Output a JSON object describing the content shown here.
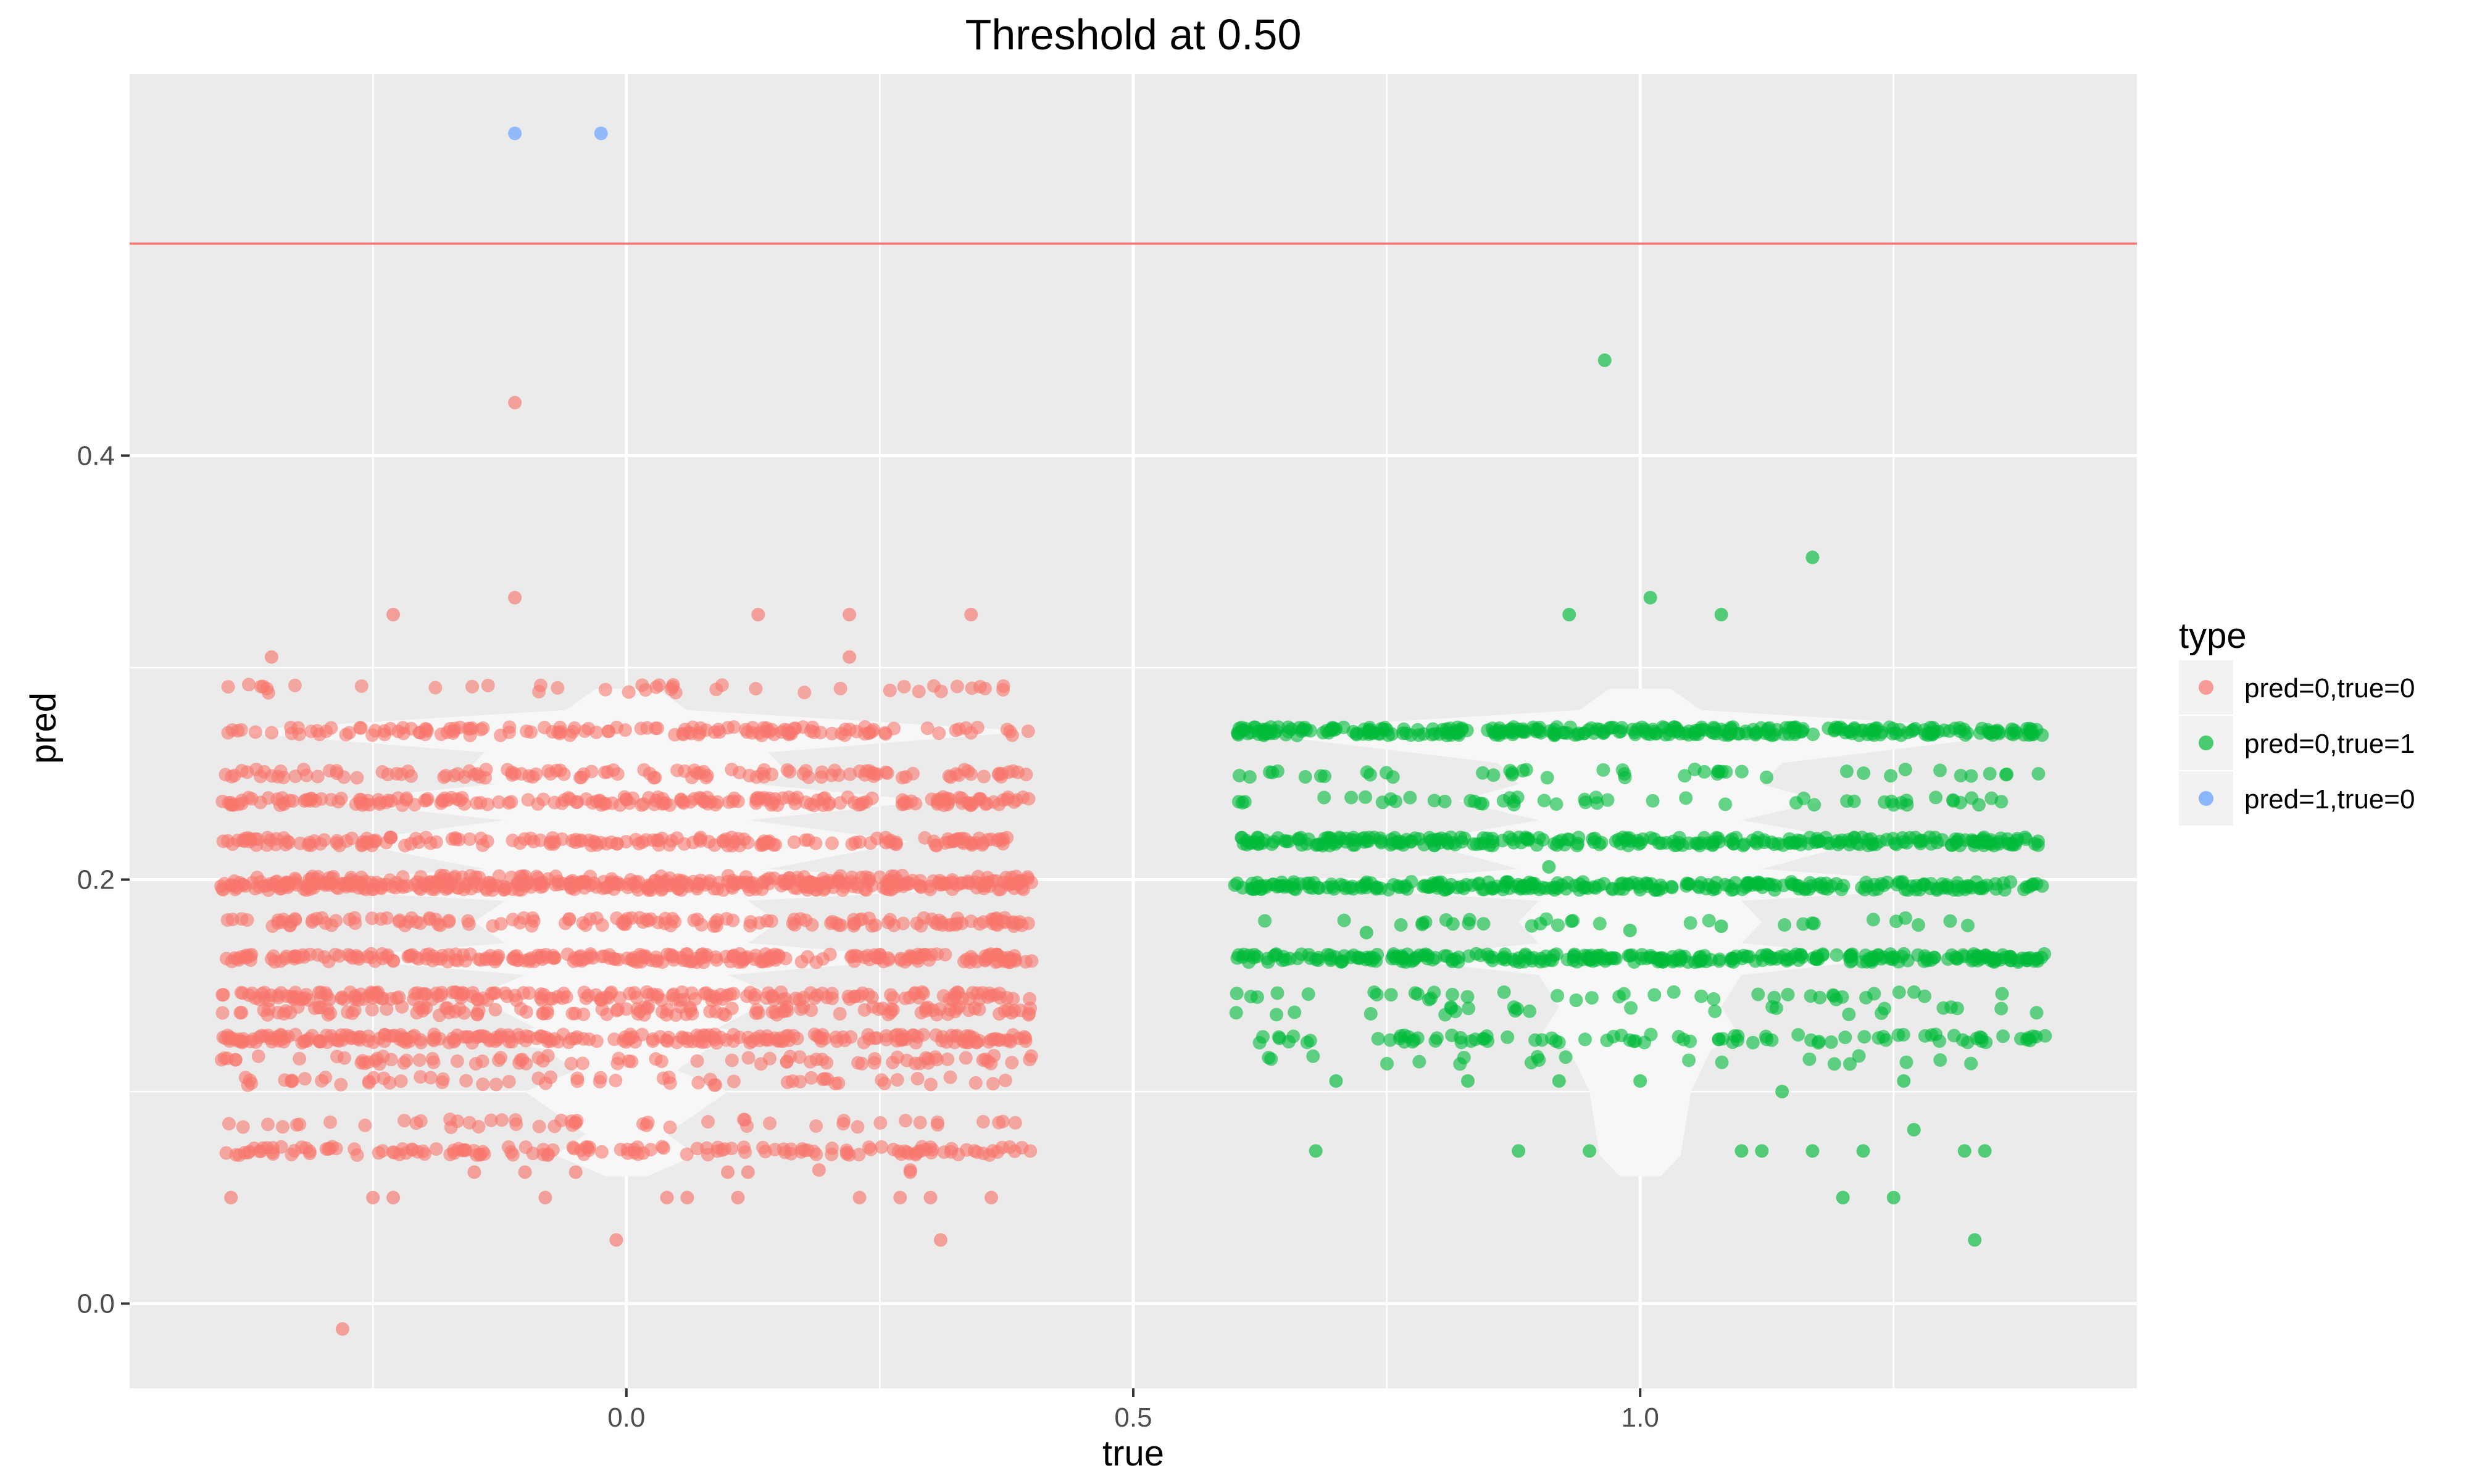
{
  "chart_data": {
    "type": "scatter",
    "title": "Threshold at 0.50",
    "xlabel": "true",
    "ylabel": "pred",
    "xlim": [
      -0.49,
      1.49
    ],
    "ylim": [
      -0.04,
      0.58
    ],
    "x_ticks": [
      0.0,
      0.5,
      1.0
    ],
    "x_tick_labels": [
      "0.0",
      "0.5",
      "1.0"
    ],
    "y_ticks": [
      0.0,
      0.2,
      0.4
    ],
    "y_tick_labels": [
      "0.0",
      "0.2",
      "0.4"
    ],
    "grid": true,
    "background_color": "#EBEBEB",
    "threshold": {
      "y": 0.5,
      "color": "#F8766D"
    },
    "legend": {
      "title": "type",
      "position": "right",
      "entries": [
        {
          "label": "pred=0,true=0",
          "color": "#F8766D"
        },
        {
          "label": "pred=0,true=1",
          "color": "#00BA38"
        },
        {
          "label": "pred=1,true=0",
          "color": "#619CFF"
        }
      ]
    },
    "violins": [
      {
        "center": 0,
        "max_halfwidth": 0.4,
        "profile": [
          [
            0.06,
            0.02
          ],
          [
            0.07,
            0.07
          ],
          [
            0.08,
            0.04
          ],
          [
            0.1,
            0.1
          ],
          [
            0.11,
            0.05
          ],
          [
            0.12,
            0.08
          ],
          [
            0.125,
            0.16
          ],
          [
            0.13,
            0.09
          ],
          [
            0.145,
            0.15
          ],
          [
            0.155,
            0.1
          ],
          [
            0.163,
            0.3
          ],
          [
            0.17,
            0.12
          ],
          [
            0.18,
            0.15
          ],
          [
            0.19,
            0.12
          ],
          [
            0.197,
            0.4
          ],
          [
            0.205,
            0.14
          ],
          [
            0.218,
            0.28
          ],
          [
            0.228,
            0.12
          ],
          [
            0.237,
            0.3
          ],
          [
            0.245,
            0.13
          ],
          [
            0.25,
            0.16
          ],
          [
            0.26,
            0.14
          ],
          [
            0.27,
            0.4
          ],
          [
            0.28,
            0.06
          ],
          [
            0.29,
            0.03
          ]
        ]
      },
      {
        "center": 1,
        "max_halfwidth": 0.4,
        "profile": [
          [
            0.06,
            0.02
          ],
          [
            0.07,
            0.04
          ],
          [
            0.1,
            0.05
          ],
          [
            0.12,
            0.07
          ],
          [
            0.125,
            0.1
          ],
          [
            0.14,
            0.08
          ],
          [
            0.155,
            0.1
          ],
          [
            0.163,
            0.25
          ],
          [
            0.17,
            0.1
          ],
          [
            0.18,
            0.12
          ],
          [
            0.19,
            0.1
          ],
          [
            0.197,
            0.35
          ],
          [
            0.205,
            0.12
          ],
          [
            0.218,
            0.22
          ],
          [
            0.228,
            0.1
          ],
          [
            0.237,
            0.18
          ],
          [
            0.245,
            0.12
          ],
          [
            0.255,
            0.14
          ],
          [
            0.27,
            0.4
          ],
          [
            0.28,
            0.06
          ],
          [
            0.29,
            0.03
          ]
        ]
      }
    ],
    "series": [
      {
        "name": "pred=0,true=0",
        "color": "#F8766D",
        "x_center": 0,
        "jitter_width": 0.4,
        "points": [
          [
            -0.11,
            0.425
          ],
          [
            -0.11,
            0.333
          ],
          [
            -0.23,
            0.325
          ],
          [
            0.13,
            0.325
          ],
          [
            0.22,
            0.325
          ],
          [
            0.34,
            0.325
          ],
          [
            -0.35,
            0.305
          ],
          [
            0.22,
            0.305
          ],
          [
            -0.28,
            -0.012
          ],
          [
            0.31,
            0.03
          ],
          [
            -0.01,
            0.03
          ],
          [
            -0.39,
            0.05
          ],
          [
            -0.25,
            0.05
          ],
          [
            -0.23,
            0.05
          ],
          [
            -0.08,
            0.05
          ],
          [
            0.04,
            0.05
          ],
          [
            0.06,
            0.05
          ],
          [
            0.11,
            0.05
          ],
          [
            0.23,
            0.05
          ],
          [
            0.27,
            0.05
          ],
          [
            0.3,
            0.05
          ],
          [
            0.36,
            0.05
          ],
          [
            -0.15,
            0.062
          ],
          [
            -0.1,
            0.062
          ],
          [
            -0.05,
            0.062
          ],
          [
            0.1,
            0.062
          ],
          [
            0.12,
            0.062
          ],
          [
            0.28,
            0.062
          ],
          [
            0.19,
            0.063
          ],
          [
            0.28,
            0.063
          ]
        ],
        "bands": [
          {
            "y": 0.27,
            "n": 140
          },
          {
            "y": 0.25,
            "n": 120
          },
          {
            "y": 0.237,
            "n": 200
          },
          {
            "y": 0.218,
            "n": 180
          },
          {
            "y": 0.2,
            "n": 150
          },
          {
            "y": 0.197,
            "n": 300
          },
          {
            "y": 0.18,
            "n": 150
          },
          {
            "y": 0.163,
            "n": 260
          },
          {
            "y": 0.145,
            "n": 200
          },
          {
            "y": 0.138,
            "n": 120
          },
          {
            "y": 0.125,
            "n": 260
          },
          {
            "y": 0.115,
            "n": 80
          },
          {
            "y": 0.105,
            "n": 60
          },
          {
            "y": 0.085,
            "n": 50
          },
          {
            "y": 0.072,
            "n": 150
          },
          {
            "y": 0.29,
            "n": 40
          }
        ]
      },
      {
        "name": "pred=0,true=1",
        "color": "#00BA38",
        "x_center": 1,
        "jitter_width": 0.4,
        "points": [
          [
            0.965,
            0.445
          ],
          [
            1.17,
            0.352
          ],
          [
            1.01,
            0.333
          ],
          [
            0.93,
            0.325
          ],
          [
            1.08,
            0.325
          ],
          [
            1.33,
            0.03
          ],
          [
            1.2,
            0.05
          ],
          [
            1.25,
            0.05
          ],
          [
            1.27,
            0.082
          ],
          [
            1.32,
            0.072
          ],
          [
            1.34,
            0.072
          ],
          [
            1.22,
            0.072
          ],
          [
            1.17,
            0.072
          ],
          [
            1.1,
            0.072
          ],
          [
            1.12,
            0.072
          ],
          [
            0.95,
            0.072
          ],
          [
            0.88,
            0.072
          ],
          [
            0.68,
            0.072
          ],
          [
            0.91,
            0.206
          ],
          [
            1.08,
            0.178
          ],
          [
            1.14,
            0.1
          ],
          [
            1.26,
            0.105
          ],
          [
            1.0,
            0.105
          ],
          [
            0.92,
            0.105
          ],
          [
            0.83,
            0.105
          ],
          [
            0.7,
            0.105
          ],
          [
            0.73,
            0.175
          ],
          [
            0.99,
            0.176
          ]
        ],
        "bands": [
          {
            "y": 0.27,
            "n": 320
          },
          {
            "y": 0.25,
            "n": 45
          },
          {
            "y": 0.237,
            "n": 50
          },
          {
            "y": 0.218,
            "n": 280
          },
          {
            "y": 0.197,
            "n": 280
          },
          {
            "y": 0.18,
            "n": 30
          },
          {
            "y": 0.163,
            "n": 300
          },
          {
            "y": 0.145,
            "n": 40
          },
          {
            "y": 0.138,
            "n": 25
          },
          {
            "y": 0.125,
            "n": 90
          },
          {
            "y": 0.115,
            "n": 20
          }
        ]
      },
      {
        "name": "pred=1,true=0",
        "color": "#619CFF",
        "x_center": 0,
        "jitter_width": 0.4,
        "points": [
          [
            -0.11,
            0.552
          ],
          [
            -0.025,
            0.552
          ]
        ],
        "bands": []
      }
    ]
  }
}
